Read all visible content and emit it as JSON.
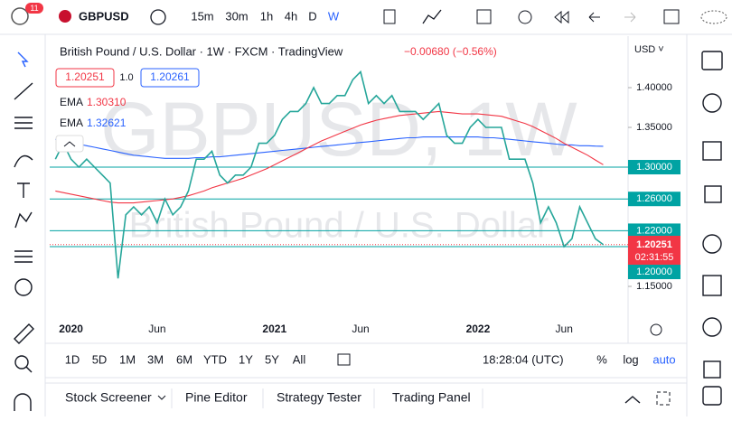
{
  "toolbar": {
    "badge": "11",
    "symbol": "GBPUSD",
    "intervals": [
      "15m",
      "30m",
      "1h",
      "4h",
      "D",
      "W"
    ]
  },
  "legend": {
    "title": "British Pound / U.S. Dollar · 1W · FXCM · TradingView",
    "change": "−0.00680 (−0.56%)",
    "currency": "USD ˅",
    "bid": "1.20251",
    "spread": "1.0",
    "ask": "1.20261",
    "ema_red_name": "EMA",
    "ema_red_value": "1.30310",
    "ema_blue_name": "EMA",
    "ema_blue_value": "1.32621"
  },
  "watermark": {
    "symbol": "GBPUSD, 1W",
    "description": "British Pound / U.S. Dollar"
  },
  "price_box": {
    "price": "1.20251",
    "countdown": "02:31:55"
  },
  "ranges": [
    "1D",
    "5D",
    "1M",
    "3M",
    "6M",
    "YTD",
    "1Y",
    "5Y",
    "All"
  ],
  "clock": "18:28:04 (UTC)",
  "scale_options": [
    "%",
    "log",
    "auto"
  ],
  "tabs": [
    "Stock Screener",
    "Pine Editor",
    "Strategy Tester",
    "Trading Panel"
  ],
  "chart_data": {
    "type": "line",
    "categories": [
      null,
      null,
      "2020",
      null,
      null,
      null,
      null,
      null,
      null,
      null,
      null,
      null,
      null,
      "Jun",
      null,
      null,
      null,
      null,
      null,
      null,
      null,
      null,
      null,
      null,
      null,
      null,
      null,
      null,
      "2021",
      null,
      null,
      null,
      null,
      null,
      null,
      null,
      null,
      null,
      null,
      "Jun",
      null,
      null,
      null,
      null,
      null,
      null,
      null,
      null,
      null,
      null,
      null,
      null,
      null,
      null,
      "2022",
      null,
      null,
      null,
      null,
      null,
      null,
      null,
      null,
      null,
      null,
      "Jun",
      null,
      null,
      null,
      null,
      null
    ],
    "series": [
      {
        "name": "GBPUSD",
        "color": "#26a69a",
        "values": [
          1.31,
          1.33,
          1.31,
          1.3,
          1.31,
          1.3,
          1.29,
          1.28,
          1.16,
          1.24,
          1.25,
          1.24,
          1.25,
          1.23,
          1.26,
          1.24,
          1.25,
          1.27,
          1.31,
          1.31,
          1.32,
          1.29,
          1.28,
          1.29,
          1.29,
          1.3,
          1.33,
          1.33,
          1.34,
          1.36,
          1.37,
          1.37,
          1.38,
          1.4,
          1.38,
          1.38,
          1.39,
          1.39,
          1.41,
          1.42,
          1.38,
          1.39,
          1.38,
          1.39,
          1.37,
          1.37,
          1.37,
          1.36,
          1.37,
          1.38,
          1.34,
          1.33,
          1.33,
          1.35,
          1.36,
          1.35,
          1.35,
          1.35,
          1.31,
          1.31,
          1.31,
          1.28,
          1.23,
          1.25,
          1.23,
          1.2,
          1.21,
          1.25,
          1.23,
          1.21,
          1.2025
        ]
      },
      {
        "name": "EMA",
        "color": "#f23645",
        "values": [
          1.27,
          1.268,
          1.266,
          1.264,
          1.262,
          1.26,
          1.258,
          1.256,
          1.255,
          1.255,
          1.255,
          1.256,
          1.257,
          1.258,
          1.259,
          1.26,
          1.262,
          1.264,
          1.267,
          1.27,
          1.274,
          1.277,
          1.28,
          1.283,
          1.286,
          1.29,
          1.294,
          1.298,
          1.303,
          1.308,
          1.313,
          1.318,
          1.323,
          1.328,
          1.333,
          1.337,
          1.341,
          1.345,
          1.349,
          1.353,
          1.356,
          1.359,
          1.361,
          1.363,
          1.365,
          1.366,
          1.367,
          1.368,
          1.369,
          1.37,
          1.369,
          1.368,
          1.367,
          1.367,
          1.367,
          1.366,
          1.365,
          1.364,
          1.361,
          1.358,
          1.355,
          1.351,
          1.346,
          1.341,
          1.336,
          1.33,
          1.325,
          1.32,
          1.315,
          1.309,
          1.3031
        ]
      },
      {
        "name": "EMA",
        "color": "#2962ff",
        "values": [
          1.335,
          1.333,
          1.331,
          1.329,
          1.327,
          1.325,
          1.323,
          1.321,
          1.319,
          1.317,
          1.315,
          1.314,
          1.313,
          1.312,
          1.311,
          1.311,
          1.311,
          1.311,
          1.312,
          1.312,
          1.313,
          1.313,
          1.314,
          1.315,
          1.316,
          1.317,
          1.318,
          1.319,
          1.32,
          1.321,
          1.322,
          1.323,
          1.324,
          1.325,
          1.326,
          1.327,
          1.328,
          1.329,
          1.33,
          1.331,
          1.332,
          1.333,
          1.334,
          1.335,
          1.336,
          1.337,
          1.337,
          1.338,
          1.338,
          1.338,
          1.338,
          1.338,
          1.338,
          1.338,
          1.338,
          1.337,
          1.337,
          1.336,
          1.335,
          1.334,
          1.333,
          1.332,
          1.331,
          1.33,
          1.329,
          1.328,
          1.328,
          1.327,
          1.327,
          1.3265,
          1.32621
        ]
      }
    ],
    "levels": [
      {
        "value": 1.3,
        "label": "1.30000"
      },
      {
        "value": 1.26,
        "label": "1.26000"
      },
      {
        "value": 1.22,
        "label": "1.22000"
      },
      {
        "value": 1.2,
        "label": "1.20000"
      }
    ],
    "level_color": "#00a3a3",
    "ylim": [
      1.0784,
      1.4648
    ],
    "yticks": [
      {
        "value": 1.4,
        "label": "1.40000"
      },
      {
        "value": 1.35,
        "label": "1.35000"
      },
      {
        "value": 1.15,
        "label": "1.15000"
      }
    ]
  }
}
